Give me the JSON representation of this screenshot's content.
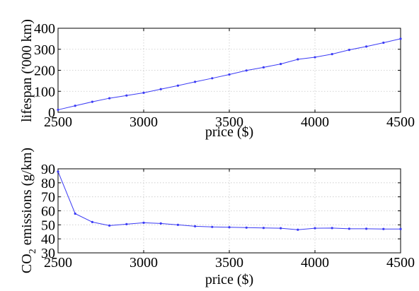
{
  "chart_data": [
    {
      "type": "line",
      "xlabel": "price ($)",
      "ylabel": "lifespan ('000 km)",
      "xlim": [
        2500,
        4500
      ],
      "ylim": [
        0,
        400
      ],
      "xticks": [
        "2500",
        "3000",
        "3500",
        "4000",
        "4500"
      ],
      "yticks": [
        "0",
        "100",
        "200",
        "300",
        "400"
      ],
      "grid": true,
      "color": "#3b3bf5",
      "series": [
        {
          "x": [
            2500,
            2600,
            2700,
            2800,
            2900,
            3000,
            3100,
            3200,
            3300,
            3400,
            3500,
            3600,
            3700,
            3800,
            3900,
            4000,
            4100,
            4200,
            4300,
            4400,
            4500
          ],
          "y": [
            12,
            31,
            50,
            67,
            80,
            93,
            110,
            127,
            145,
            162,
            180,
            199,
            214,
            230,
            252,
            262,
            277,
            297,
            313,
            331,
            350
          ]
        }
      ]
    },
    {
      "type": "line",
      "xlabel": "price ($)",
      "ylabel_parts": [
        "CO",
        "2",
        " emissions (g/km)"
      ],
      "xlim": [
        2500,
        4500
      ],
      "ylim": [
        30,
        90
      ],
      "xticks": [
        "2500",
        "3000",
        "3500",
        "4000",
        "4500"
      ],
      "yticks": [
        "30",
        "40",
        "50",
        "60",
        "70",
        "80",
        "90"
      ],
      "grid": true,
      "color": "#3b3bf5",
      "series": [
        {
          "x": [
            2500,
            2600,
            2700,
            2800,
            2900,
            3000,
            3100,
            3200,
            3300,
            3400,
            3500,
            3600,
            3700,
            3800,
            3900,
            4000,
            4100,
            4200,
            4300,
            4400,
            4500
          ],
          "y": [
            88,
            58,
            52,
            49.5,
            50.5,
            51.5,
            51,
            50,
            49,
            48.5,
            48.3,
            48,
            47.8,
            47.6,
            46.5,
            47.6,
            47.7,
            47.2,
            47.2,
            47,
            47
          ]
        }
      ]
    }
  ]
}
